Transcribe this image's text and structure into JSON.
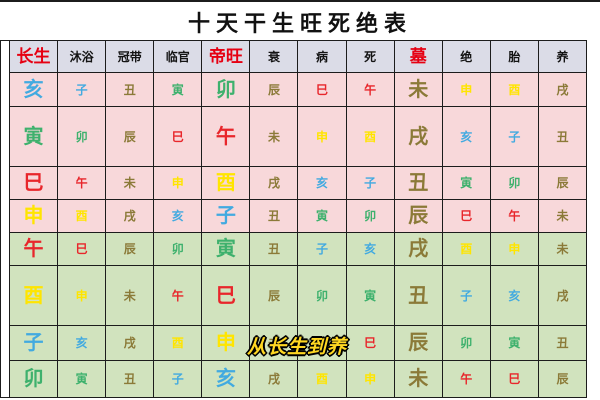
{
  "title": "十天干生旺死绝表",
  "watermark": "从长生到养",
  "table": {
    "columns": [
      {
        "label": "长生",
        "emphasis": true
      },
      {
        "label": "沐浴",
        "emphasis": false
      },
      {
        "label": "冠带",
        "emphasis": false
      },
      {
        "label": "临官",
        "emphasis": false
      },
      {
        "label": "帝旺",
        "emphasis": true
      },
      {
        "label": "衰",
        "emphasis": false
      },
      {
        "label": "病",
        "emphasis": false
      },
      {
        "label": "死",
        "emphasis": false
      },
      {
        "label": "墓",
        "emphasis": true
      },
      {
        "label": "绝",
        "emphasis": false
      },
      {
        "label": "胎",
        "emphasis": false
      },
      {
        "label": "养",
        "emphasis": false
      }
    ],
    "rows": [
      {
        "group": "yang",
        "branches": [
          "亥",
          "子",
          "丑",
          "寅",
          "卯",
          "辰",
          "巳",
          "午",
          "未",
          "申",
          "酉",
          "戌"
        ]
      },
      {
        "group": "yang",
        "branches": [
          "寅",
          "卯",
          "辰",
          "巳",
          "午",
          "未",
          "申",
          "酉",
          "戌",
          "亥",
          "子",
          "丑"
        ]
      },
      {
        "group": "yang",
        "branches": [
          "巳",
          "午",
          "未",
          "申",
          "酉",
          "戌",
          "亥",
          "子",
          "丑",
          "寅",
          "卯",
          "辰"
        ]
      },
      {
        "group": "yang",
        "branches": [
          "申",
          "酉",
          "戌",
          "亥",
          "子",
          "丑",
          "寅",
          "卯",
          "辰",
          "巳",
          "午",
          "未"
        ]
      },
      {
        "group": "yin",
        "branches": [
          "午",
          "巳",
          "辰",
          "卯",
          "寅",
          "丑",
          "子",
          "亥",
          "戌",
          "酉",
          "申",
          "未"
        ]
      },
      {
        "group": "yin",
        "branches": [
          "酉",
          "申",
          "未",
          "午",
          "巳",
          "辰",
          "卯",
          "寅",
          "丑",
          "子",
          "亥",
          "戌"
        ]
      },
      {
        "group": "yin",
        "branches": [
          "子",
          "亥",
          "戌",
          "酉",
          "申",
          "未",
          "午",
          "巳",
          "辰",
          "卯",
          "寅",
          "丑"
        ]
      },
      {
        "group": "yin",
        "branches": [
          "卯",
          "寅",
          "丑",
          "子",
          "亥",
          "戌",
          "酉",
          "申",
          "未",
          "午",
          "巳",
          "辰"
        ]
      }
    ],
    "emphasis_columns": [
      0,
      4,
      8
    ]
  },
  "branch_elements": {
    "亥": "water",
    "子": "water",
    "寅": "wood",
    "卯": "wood",
    "巳": "fire",
    "午": "fire",
    "申": "metal",
    "酉": "metal",
    "辰": "earth",
    "戌": "earth",
    "丑": "earth",
    "未": "earth"
  },
  "colors": {
    "header_bg": "#dbdce7",
    "yang_row_bg": "#f8d8da",
    "yin_row_bg": "#d1e3be",
    "header_emphasis": "#e60012",
    "water": "#42aae0",
    "wood": "#3eb16d",
    "fire": "#e8262b",
    "metal": "#ffe500",
    "earth": "#8b7a38",
    "watermark": "#ffd722"
  }
}
